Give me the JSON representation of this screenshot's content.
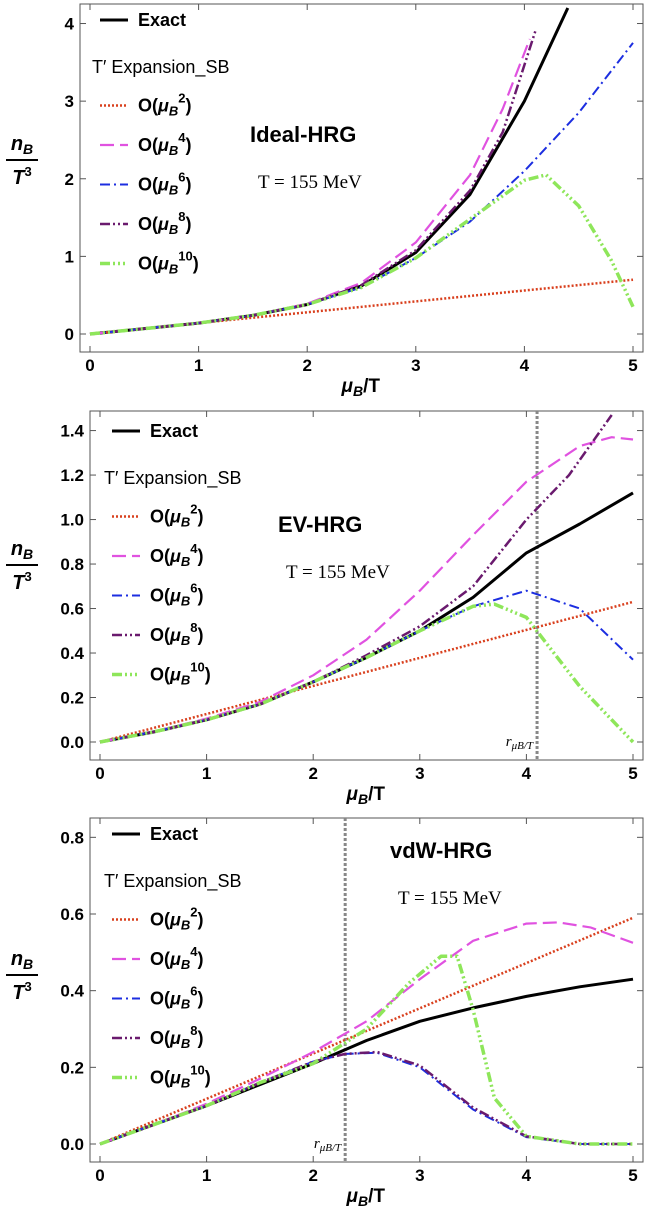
{
  "chart_data": [
    {
      "type": "line",
      "title": "Ideal-HRG",
      "annotation": "T = 155 MeV",
      "xlabel": "μB/T",
      "ylabel_num": "nB",
      "ylabel_den": "T3",
      "xlim": [
        0,
        5
      ],
      "ylim": [
        0,
        4.2
      ],
      "xticks": [
        "0",
        "1",
        "2",
        "3",
        "4",
        "5"
      ],
      "yticks": [
        "0",
        "1",
        "2",
        "3",
        "4"
      ],
      "legend_title": "T′ Expansion_SB",
      "legend_placement": "top-left",
      "vline": null,
      "vline_label": "",
      "series": [
        {
          "name": "Exact",
          "x": [
            0,
            0.5,
            1,
            1.5,
            2,
            2.5,
            3,
            3.5,
            4,
            4.4
          ],
          "y": [
            0,
            0.07,
            0.14,
            0.24,
            0.38,
            0.62,
            1.05,
            1.8,
            3.0,
            4.2
          ]
        },
        {
          "name": "O(μB2)",
          "x": [
            0,
            1,
            2,
            3,
            4,
            5
          ],
          "y": [
            0,
            0.14,
            0.28,
            0.42,
            0.56,
            0.7
          ]
        },
        {
          "name": "O(μB4)",
          "x": [
            0,
            0.5,
            1,
            1.5,
            2,
            2.5,
            3,
            3.5,
            3.8,
            4.05
          ],
          "y": [
            0,
            0.07,
            0.14,
            0.24,
            0.39,
            0.66,
            1.18,
            2.05,
            2.9,
            3.8
          ]
        },
        {
          "name": "O(μB6)",
          "x": [
            0,
            0.5,
            1,
            1.5,
            2,
            2.5,
            3,
            3.5,
            4,
            4.5,
            5
          ],
          "y": [
            0,
            0.07,
            0.14,
            0.24,
            0.38,
            0.6,
            0.98,
            1.45,
            2.1,
            2.85,
            3.75
          ]
        },
        {
          "name": "O(μB8)",
          "x": [
            0,
            0.5,
            1,
            1.5,
            2,
            2.5,
            3,
            3.5,
            3.8,
            4.1
          ],
          "y": [
            0,
            0.07,
            0.14,
            0.24,
            0.38,
            0.63,
            1.08,
            1.85,
            2.6,
            3.9
          ]
        },
        {
          "name": "O(μB10)",
          "x": [
            0,
            0.5,
            1,
            1.5,
            2,
            2.5,
            3,
            3.5,
            4,
            4.2,
            4.5,
            4.8,
            5
          ],
          "y": [
            0,
            0.07,
            0.14,
            0.24,
            0.38,
            0.6,
            0.98,
            1.48,
            1.98,
            2.05,
            1.65,
            0.95,
            0.35
          ]
        }
      ]
    },
    {
      "type": "line",
      "title": "EV-HRG",
      "annotation": "T = 155 MeV",
      "xlabel": "μB/T",
      "ylabel_num": "nB",
      "ylabel_den": "T3",
      "xlim": [
        0,
        5
      ],
      "ylim": [
        0,
        1.47
      ],
      "xticks": [
        "0",
        "1",
        "2",
        "3",
        "4",
        "5"
      ],
      "yticks": [
        "0.0",
        "0.2",
        "0.4",
        "0.6",
        "0.8",
        "1.0",
        "1.2",
        "1.4"
      ],
      "legend_title": "T′ Expansion_SB",
      "legend_placement": "top-left",
      "vline": 4.1,
      "vline_label": "r",
      "vline_sub": "μB/T",
      "series": [
        {
          "name": "Exact",
          "x": [
            0,
            0.5,
            1,
            1.5,
            2,
            2.5,
            3,
            3.5,
            4,
            4.5,
            5
          ],
          "y": [
            0,
            0.045,
            0.1,
            0.17,
            0.27,
            0.38,
            0.5,
            0.65,
            0.85,
            0.98,
            1.12
          ]
        },
        {
          "name": "O(μB2)",
          "x": [
            0,
            1,
            2,
            3,
            4,
            5
          ],
          "y": [
            0,
            0.126,
            0.252,
            0.378,
            0.504,
            0.63
          ]
        },
        {
          "name": "O(μB4)",
          "x": [
            0,
            0.5,
            1,
            1.5,
            2,
            2.5,
            3,
            3.5,
            4,
            4.5,
            4.8,
            5
          ],
          "y": [
            0,
            0.046,
            0.105,
            0.18,
            0.3,
            0.46,
            0.68,
            0.93,
            1.17,
            1.33,
            1.37,
            1.36
          ]
        },
        {
          "name": "O(μB6)",
          "x": [
            0,
            0.5,
            1,
            1.5,
            2,
            2.5,
            3,
            3.5,
            4,
            4.5,
            5
          ],
          "y": [
            0,
            0.045,
            0.1,
            0.17,
            0.27,
            0.38,
            0.5,
            0.61,
            0.68,
            0.6,
            0.37
          ]
        },
        {
          "name": "O(μB8)",
          "x": [
            0,
            0.5,
            1,
            1.5,
            2,
            2.5,
            3,
            3.5,
            4,
            4.4,
            4.8
          ],
          "y": [
            0,
            0.045,
            0.1,
            0.17,
            0.27,
            0.39,
            0.52,
            0.7,
            1.0,
            1.2,
            1.47
          ]
        },
        {
          "name": "O(μB10)",
          "x": [
            0,
            0.5,
            1,
            1.5,
            2,
            2.5,
            3,
            3.5,
            3.7,
            4,
            4.5,
            5
          ],
          "y": [
            0,
            0.045,
            0.1,
            0.17,
            0.27,
            0.38,
            0.5,
            0.61,
            0.62,
            0.56,
            0.25,
            0.0
          ]
        }
      ]
    },
    {
      "type": "line",
      "title": "vdW-HRG",
      "annotation": "T = 155 MeV",
      "xlabel": "μB/T",
      "ylabel_num": "nB",
      "ylabel_den": "T3",
      "xlim": [
        0,
        5
      ],
      "ylim": [
        0,
        0.84
      ],
      "xticks": [
        "0",
        "1",
        "2",
        "3",
        "4",
        "5"
      ],
      "yticks": [
        "0.0",
        "0.2",
        "0.4",
        "0.6",
        "0.8"
      ],
      "legend_title": "T′ Expansion_SB",
      "legend_placement": "top-left",
      "vline": 2.3,
      "vline_label": "r",
      "vline_sub": "μB/T",
      "series": [
        {
          "name": "Exact",
          "x": [
            0,
            0.5,
            1,
            1.5,
            2,
            2.5,
            3,
            3.5,
            4,
            4.5,
            5
          ],
          "y": [
            0,
            0.05,
            0.1,
            0.155,
            0.21,
            0.27,
            0.32,
            0.355,
            0.385,
            0.41,
            0.43
          ]
        },
        {
          "name": "O(μB2)",
          "x": [
            0,
            1,
            2,
            3,
            4,
            5
          ],
          "y": [
            0,
            0.118,
            0.236,
            0.354,
            0.472,
            0.59
          ]
        },
        {
          "name": "O(μB4)",
          "x": [
            0,
            0.5,
            1,
            1.5,
            2,
            2.5,
            3,
            3.5,
            4,
            4.3,
            4.6,
            5
          ],
          "y": [
            0,
            0.05,
            0.105,
            0.17,
            0.24,
            0.32,
            0.43,
            0.53,
            0.575,
            0.578,
            0.565,
            0.525
          ]
        },
        {
          "name": "O(μB6)",
          "x": [
            0,
            0.5,
            1,
            1.5,
            2,
            2.3,
            2.6,
            3,
            3.5,
            4,
            4.5,
            5
          ],
          "y": [
            0,
            0.05,
            0.1,
            0.16,
            0.215,
            0.235,
            0.238,
            0.2,
            0.09,
            0.018,
            0.0,
            0.0
          ]
        },
        {
          "name": "O(μB8)",
          "x": [
            0,
            0.5,
            1,
            1.5,
            2,
            2.3,
            2.6,
            3,
            3.5,
            4,
            4.5,
            5
          ],
          "y": [
            0,
            0.05,
            0.1,
            0.16,
            0.215,
            0.235,
            0.24,
            0.205,
            0.095,
            0.02,
            0.0,
            0.0
          ]
        },
        {
          "name": "O(μB10)",
          "x": [
            0,
            0.5,
            1,
            1.5,
            2,
            2.5,
            2.9,
            3.2,
            3.35,
            3.5,
            3.7,
            4,
            4.5,
            5
          ],
          "y": [
            0,
            0.05,
            0.1,
            0.16,
            0.21,
            0.3,
            0.42,
            0.49,
            0.49,
            0.35,
            0.12,
            0.02,
            0.0,
            0.0
          ]
        }
      ]
    }
  ],
  "styles": {
    "Exact": {
      "color": "#000000",
      "dash": "",
      "width": 3
    },
    "O(μB2)": {
      "color": "#d9401e",
      "dash": "2 2",
      "width": 2.5
    },
    "O(μB4)": {
      "color": "#e052e0",
      "dash": "14 6",
      "width": 2.2
    },
    "O(μB6)": {
      "color": "#1c2ee0",
      "dash": "10 4 2 4",
      "width": 2
    },
    "O(μB8)": {
      "color": "#6a1a6e",
      "dash": "10 3 2 3 2 3",
      "width": 2.5
    },
    "O(μB10)": {
      "color": "#8ee65a",
      "dash": "10 3 2 3 2 3 2 3",
      "width": 3.5
    }
  }
}
